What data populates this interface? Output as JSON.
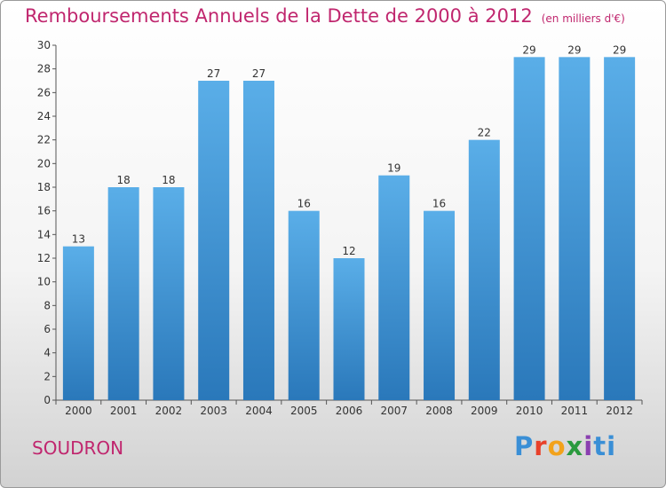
{
  "title": "Remboursements Annuels de la Dette de 2000 à 2012",
  "unit": "(en milliers d'€)",
  "commune": "SOUDRON",
  "logo": "Proxiti",
  "colors": {
    "title": "#c0266e",
    "bar_top": "#5aaee8",
    "bar_bottom": "#2a78ba",
    "label": "#333333"
  },
  "chart_data": {
    "type": "bar",
    "title": "Remboursements Annuels de la Dette de 2000 à 2012",
    "xlabel": "",
    "ylabel": "",
    "categories": [
      "2000",
      "2001",
      "2002",
      "2003",
      "2004",
      "2005",
      "2006",
      "2007",
      "2008",
      "2009",
      "2010",
      "2011",
      "2012"
    ],
    "values": [
      13,
      18,
      18,
      27,
      27,
      16,
      12,
      19,
      16,
      22,
      29,
      29,
      29
    ],
    "ylim": [
      0,
      30
    ],
    "yticks": [
      0,
      2,
      4,
      6,
      8,
      10,
      12,
      14,
      16,
      18,
      20,
      22,
      24,
      26,
      28,
      30
    ],
    "grid": false,
    "legend": "none"
  }
}
